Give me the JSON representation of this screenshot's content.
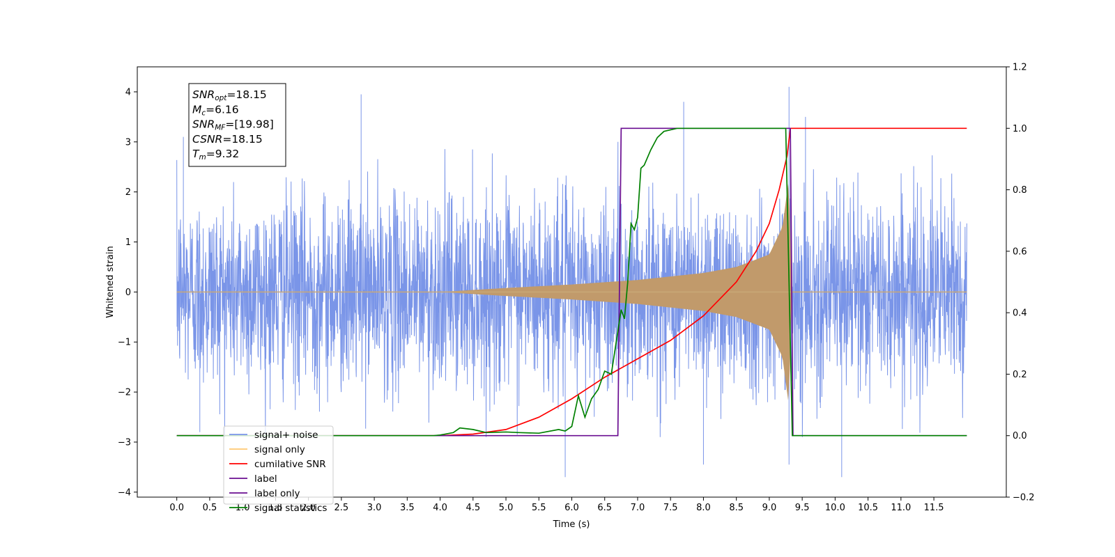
{
  "chart_data": {
    "type": "line",
    "title": "",
    "xlabel": "Time (s)",
    "ylabel": "Whitened strain",
    "y2label": "",
    "xlim": [
      -0.6,
      12.6
    ],
    "ylim": [
      -4.1,
      4.5
    ],
    "y2lim": [
      -0.2,
      1.2
    ],
    "xticks": [
      "0.0",
      "0.5",
      "1.0",
      "1.5",
      "2.0",
      "2.5",
      "3.0",
      "3.5",
      "4.0",
      "4.5",
      "5.0",
      "5.5",
      "6.0",
      "6.5",
      "7.0",
      "7.5",
      "8.0",
      "8.5",
      "9.0",
      "9.5",
      "10.0",
      "10.5",
      "11.0",
      "11.5"
    ],
    "yticks": [
      "4",
      "3",
      "2",
      "1",
      "0",
      "−1",
      "−2",
      "−3",
      "−4"
    ],
    "y2ticks": [
      "1.2",
      "1.0",
      "0.8",
      "0.6",
      "0.4",
      "0.2",
      "0.0",
      "−0.2"
    ],
    "annotation": {
      "lines": [
        {
          "base": "SNR",
          "sub": "opt",
          "rest": "=18.15"
        },
        {
          "base": "M",
          "sub": "c",
          "rest": "=6.16"
        },
        {
          "base": "SNR",
          "sub": "MF",
          "rest": "=[19.98]"
        },
        {
          "base": "CSNR",
          "sub": "",
          "rest": "=18.15"
        },
        {
          "base": "T",
          "sub": "m",
          "rest": "=9.32"
        }
      ]
    },
    "legend": {
      "placement": "lower-left",
      "entries": [
        {
          "label": "signal+ noise",
          "color": "#7a95e8"
        },
        {
          "label": "signal only",
          "color": "#ffc870"
        },
        {
          "label": "cumilative SNR",
          "color": "#ff0000"
        },
        {
          "label": "label",
          "color": "#6a0d91"
        },
        {
          "label": "label only",
          "color": "#6a0d91"
        },
        {
          "label": "signal statistics",
          "color": "#008000"
        }
      ]
    },
    "series": [
      {
        "name": "signal+ noise",
        "axis": "left",
        "color": "#7a95e8",
        "note_std": 0.95,
        "x_range": [
          0.0,
          12.0
        ],
        "peaks": [
          [
            0.1,
            3.1
          ],
          [
            0.35,
            -2.8
          ],
          [
            2.8,
            3.95
          ],
          [
            5.9,
            -3.7
          ],
          [
            7.7,
            3.8
          ],
          [
            9.3,
            4.1
          ],
          [
            9.3,
            -3.45
          ],
          [
            9.55,
            3.5
          ],
          [
            10.1,
            -3.7
          ],
          [
            8.0,
            -3.45
          ]
        ]
      },
      {
        "name": "signal only",
        "axis": "left",
        "color": "#c19a6b",
        "chirp_start": 4.0,
        "merger_time": 9.32,
        "envelope": [
          [
            4.0,
            0.0
          ],
          [
            5.0,
            0.08
          ],
          [
            6.0,
            0.15
          ],
          [
            7.0,
            0.24
          ],
          [
            8.0,
            0.38
          ],
          [
            8.5,
            0.5
          ],
          [
            9.0,
            0.75
          ],
          [
            9.2,
            1.3
          ],
          [
            9.3,
            2.3
          ],
          [
            9.34,
            0.0
          ]
        ]
      },
      {
        "name": "cumilative SNR",
        "axis": "right",
        "color": "#ff0000",
        "points": [
          [
            0.0,
            0.0
          ],
          [
            3.0,
            0.0
          ],
          [
            4.0,
            0.0
          ],
          [
            4.5,
            0.005
          ],
          [
            5.0,
            0.02
          ],
          [
            5.5,
            0.06
          ],
          [
            6.0,
            0.12
          ],
          [
            6.5,
            0.19
          ],
          [
            7.0,
            0.25
          ],
          [
            7.5,
            0.31
          ],
          [
            8.0,
            0.39
          ],
          [
            8.5,
            0.5
          ],
          [
            8.8,
            0.6
          ],
          [
            9.0,
            0.69
          ],
          [
            9.15,
            0.8
          ],
          [
            9.27,
            0.91
          ],
          [
            9.32,
            1.0
          ],
          [
            12.0,
            1.0
          ]
        ]
      },
      {
        "name": "label",
        "axis": "right",
        "color": "#6a0d91",
        "points": [
          [
            0.0,
            0.0
          ],
          [
            6.7,
            0.0
          ],
          [
            6.75,
            1.0
          ],
          [
            9.32,
            1.0
          ],
          [
            9.36,
            0.0
          ],
          [
            12.0,
            0.0
          ]
        ]
      },
      {
        "name": "signal statistics",
        "axis": "right",
        "color": "#008000",
        "points": [
          [
            0.0,
            0.0
          ],
          [
            3.9,
            0.0
          ],
          [
            4.0,
            0.002
          ],
          [
            4.2,
            0.01
          ],
          [
            4.3,
            0.025
          ],
          [
            4.5,
            0.02
          ],
          [
            4.7,
            0.01
          ],
          [
            5.0,
            0.012
          ],
          [
            5.2,
            0.01
          ],
          [
            5.5,
            0.008
          ],
          [
            5.8,
            0.02
          ],
          [
            5.9,
            0.015
          ],
          [
            6.0,
            0.03
          ],
          [
            6.1,
            0.13
          ],
          [
            6.2,
            0.06
          ],
          [
            6.3,
            0.12
          ],
          [
            6.4,
            0.15
          ],
          [
            6.5,
            0.21
          ],
          [
            6.6,
            0.2
          ],
          [
            6.65,
            0.27
          ],
          [
            6.7,
            0.34
          ],
          [
            6.75,
            0.41
          ],
          [
            6.8,
            0.38
          ],
          [
            6.85,
            0.5
          ],
          [
            6.9,
            0.69
          ],
          [
            6.95,
            0.67
          ],
          [
            7.0,
            0.71
          ],
          [
            7.05,
            0.87
          ],
          [
            7.1,
            0.88
          ],
          [
            7.2,
            0.93
          ],
          [
            7.3,
            0.97
          ],
          [
            7.4,
            0.99
          ],
          [
            7.6,
            1.0
          ],
          [
            9.25,
            1.0
          ],
          [
            9.3,
            0.5
          ],
          [
            9.35,
            0.0
          ],
          [
            12.0,
            0.0
          ]
        ]
      }
    ]
  }
}
